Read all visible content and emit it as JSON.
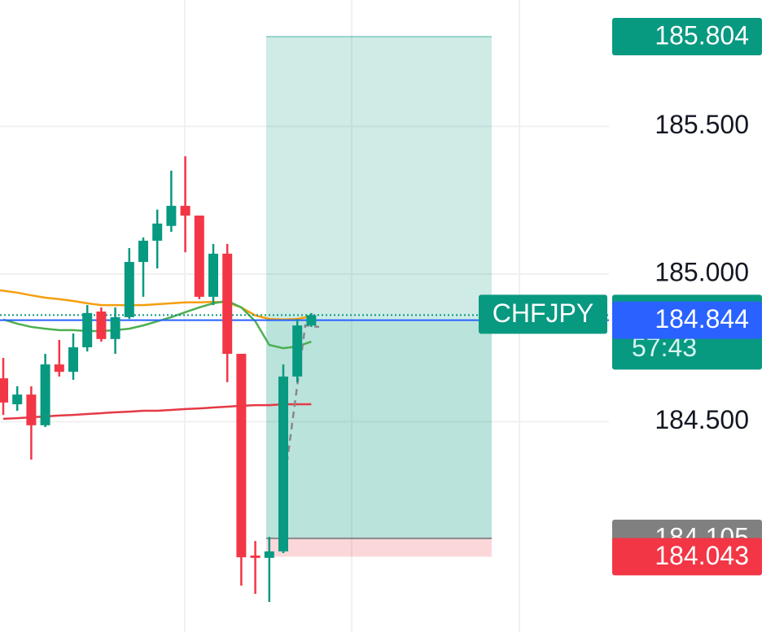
{
  "chart_data": {
    "type": "candlestick",
    "symbol": "CHFJPY",
    "ylim": [
      183.788,
      185.928
    ],
    "yticks": [
      {
        "value": 184.5,
        "label": "184.500"
      },
      {
        "value": 185,
        "label": "185.000"
      },
      {
        "value": 185.5,
        "label": "185.500"
      }
    ],
    "grid": true,
    "up_color": "#089981",
    "down_color": "#f23645",
    "candles": [
      {
        "open": 184.647,
        "high": 184.716,
        "low": 184.523,
        "close": 184.565
      },
      {
        "open": 184.559,
        "high": 184.62,
        "low": 184.537,
        "close": 184.592
      },
      {
        "open": 184.592,
        "high": 184.62,
        "low": 184.372,
        "close": 184.488
      },
      {
        "open": 184.488,
        "high": 184.73,
        "low": 184.482,
        "close": 184.694
      },
      {
        "open": 184.694,
        "high": 184.777,
        "low": 184.653,
        "close": 184.669
      },
      {
        "open": 184.669,
        "high": 184.799,
        "low": 184.642,
        "close": 184.752
      },
      {
        "open": 184.752,
        "high": 184.895,
        "low": 184.738,
        "close": 184.868
      },
      {
        "open": 184.873,
        "high": 184.887,
        "low": 184.771,
        "close": 184.78
      },
      {
        "open": 184.78,
        "high": 184.887,
        "low": 184.73,
        "close": 184.854
      },
      {
        "open": 184.854,
        "high": 185.088,
        "low": 184.848,
        "close": 185.041
      },
      {
        "open": 185.041,
        "high": 185.124,
        "low": 184.923,
        "close": 185.113
      },
      {
        "open": 185.113,
        "high": 185.218,
        "low": 185.019,
        "close": 185.171
      },
      {
        "open": 185.163,
        "high": 185.35,
        "low": 185.143,
        "close": 185.231
      },
      {
        "open": 185.231,
        "high": 185.399,
        "low": 185.074,
        "close": 185.198
      },
      {
        "open": 185.198,
        "high": 185.198,
        "low": 184.915,
        "close": 184.923
      },
      {
        "open": 184.923,
        "high": 185.102,
        "low": 184.895,
        "close": 185.069
      },
      {
        "open": 185.069,
        "high": 185.102,
        "low": 184.634,
        "close": 184.73
      },
      {
        "open": 184.73,
        "high": 184.73,
        "low": 183.945,
        "close": 184.041
      },
      {
        "open": 184.047,
        "high": 184.096,
        "low": 183.917,
        "close": 184.039
      },
      {
        "open": 184.039,
        "high": 184.11,
        "low": 183.89,
        "close": 184.061
      },
      {
        "open": 184.061,
        "high": 184.694,
        "low": 184.055,
        "close": 184.653
      },
      {
        "open": 184.653,
        "high": 184.848,
        "low": 184.634,
        "close": 184.826
      },
      {
        "open": 184.826,
        "high": 184.868,
        "low": 184.821,
        "close": 184.861
      }
    ],
    "moving_averages": [
      {
        "color": "#f59e0b",
        "values": [
          184.945,
          184.937,
          184.928,
          184.92,
          184.915,
          184.909,
          184.901,
          184.895,
          184.895,
          184.895,
          184.895,
          184.898,
          184.901,
          184.904,
          184.904,
          184.906,
          184.904,
          184.887,
          184.86,
          184.848,
          184.846,
          184.848,
          184.857
        ]
      },
      {
        "color": "#4caf50",
        "values": [
          184.846,
          184.832,
          184.821,
          184.815,
          184.81,
          184.81,
          184.807,
          184.807,
          184.81,
          184.815,
          184.826,
          184.84,
          184.854,
          184.871,
          184.887,
          184.901,
          184.909,
          184.887,
          184.84,
          184.76,
          184.749,
          184.755,
          184.771
        ]
      },
      {
        "color": "#e53945",
        "values": [
          184.51,
          184.512,
          184.515,
          184.518,
          184.521,
          184.523,
          184.526,
          184.529,
          184.532,
          184.534,
          184.537,
          184.537,
          184.54,
          184.543,
          184.545,
          184.548,
          184.551,
          184.554,
          184.556,
          184.556,
          184.559,
          184.559,
          184.559
        ]
      }
    ],
    "position": {
      "take_profit": 185.804,
      "entry": 184.844,
      "stop_level": 184.105,
      "stop_loss": 184.043
    },
    "last_price": 184.861,
    "countdown": "57:43"
  }
}
